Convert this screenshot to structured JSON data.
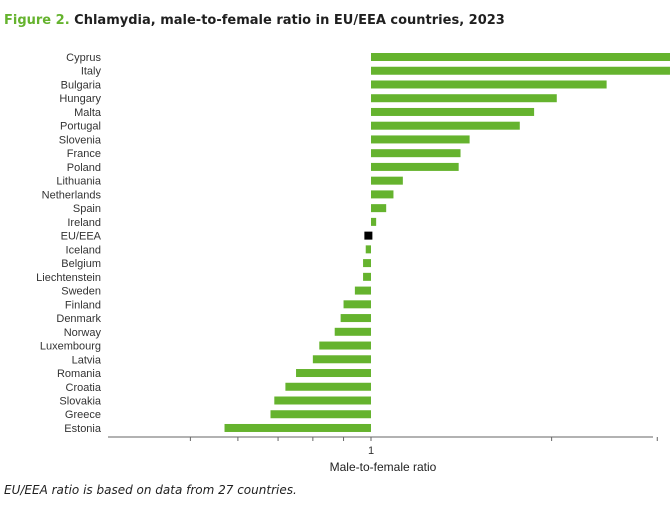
{
  "figure": {
    "label": "Figure 2.",
    "title": "Chlamydia, male-to-female ratio in EU/EEA countries, 2023",
    "footnote": "EU/EEA ratio is based on data from 27 countries."
  },
  "colors": {
    "bar": "#65b32e",
    "highlight": "#000000",
    "axis": "#666666",
    "figure_label": "#65b32e"
  },
  "chart_data": {
    "type": "bar",
    "orientation": "horizontal",
    "xscale": "log",
    "xlabel": "Male-to-female ratio",
    "ylabel": "",
    "xlim": [
      0.4,
      3.8
    ],
    "xticks": [
      0.5,
      0.6,
      0.7,
      0.8,
      0.9,
      1,
      2,
      3
    ],
    "xtick_labels": [
      "",
      "",
      "",
      "",
      "",
      "1",
      "",
      ""
    ],
    "reference_value": 1,
    "grid": false,
    "highlight_category": "EU/EEA",
    "categories": [
      "Cyprus",
      "Italy",
      "Bulgaria",
      "Hungary",
      "Malta",
      "Portugal",
      "Slovenia",
      "France",
      "Poland",
      "Lithuania",
      "Netherlands",
      "Spain",
      "Ireland",
      "EU/EEA",
      "Iceland",
      "Belgium",
      "Liechtenstein",
      "Sweden",
      "Finland",
      "Denmark",
      "Norway",
      "Luxembourg",
      "Latvia",
      "Romania",
      "Croatia",
      "Slovakia",
      "Greece",
      "Estonia"
    ],
    "values": [
      3.63,
      3.15,
      2.47,
      2.04,
      1.87,
      1.77,
      1.46,
      1.41,
      1.4,
      1.13,
      1.09,
      1.06,
      1.02,
      0.99,
      0.98,
      0.97,
      0.97,
      0.94,
      0.9,
      0.89,
      0.87,
      0.82,
      0.8,
      0.75,
      0.72,
      0.69,
      0.68,
      0.57
    ]
  }
}
